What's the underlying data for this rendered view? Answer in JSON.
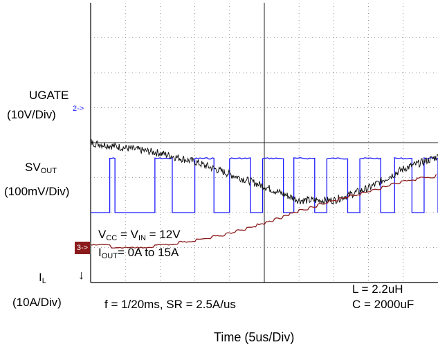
{
  "labels": {
    "ugate": "UGATE",
    "ugate_scale": "(10V/Div)",
    "svout_main": "SV",
    "svout_sub": "OUT",
    "svout_scale": "(100mV/Div)",
    "il_main": "I",
    "il_sub": "L",
    "il_scale": "(10A/Div)",
    "il_arrow": "↓",
    "ch2_marker": "2->",
    "ch3_marker": "3->",
    "vcc_a": "V",
    "vcc_a_sub": "CC",
    "vcc_b": " = V",
    "vcc_b_sub": "IN",
    "vcc_c": " = 12V",
    "iout_a": "I",
    "iout_a_sub": "OUT",
    "iout_b": "= 0A to 15A",
    "freq": "f = 1/20ms, SR = 2.5A/us",
    "inductor": "L = 2.2uH",
    "capacitor": "C = 2000uF",
    "time_axis": "Time (5us/Div)"
  },
  "chart_data": {
    "type": "line",
    "title": "",
    "xlabel": "Time (5us/Div)",
    "x_divisions": 10,
    "y_divisions": 8,
    "grid": true,
    "series": [
      {
        "name": "UGATE",
        "color": "#1a1aff",
        "scale": "10V/Div",
        "pulse_starts_div": [
          0.55,
          1.85,
          3.0,
          4.0,
          4.95,
          5.85,
          6.8,
          7.75,
          8.75,
          9.6
        ],
        "pulse_widths_div": [
          0.15,
          0.5,
          0.55,
          0.6,
          0.6,
          0.6,
          0.6,
          0.6,
          0.5,
          0.4
        ],
        "high_div": 3.55,
        "low_div": 2.0
      },
      {
        "name": "SV",
        "color": "#111111",
        "scale": "100mV/Div",
        "x_div": [
          0,
          1,
          2,
          3,
          4,
          5,
          6,
          7,
          8,
          9,
          10
        ],
        "y_div": [
          4.0,
          3.85,
          3.7,
          3.45,
          3.1,
          2.75,
          2.35,
          2.35,
          2.7,
          3.25,
          3.6
        ]
      },
      {
        "name": "I",
        "color": "#8b1a1a",
        "scale": "10A/Div",
        "x_div": [
          0,
          1,
          2,
          3,
          4,
          5,
          6,
          7,
          8,
          9,
          10
        ],
        "y_div": [
          1.1,
          1.0,
          1.05,
          1.2,
          1.4,
          1.7,
          2.05,
          2.35,
          2.6,
          2.9,
          3.05
        ]
      }
    ]
  }
}
